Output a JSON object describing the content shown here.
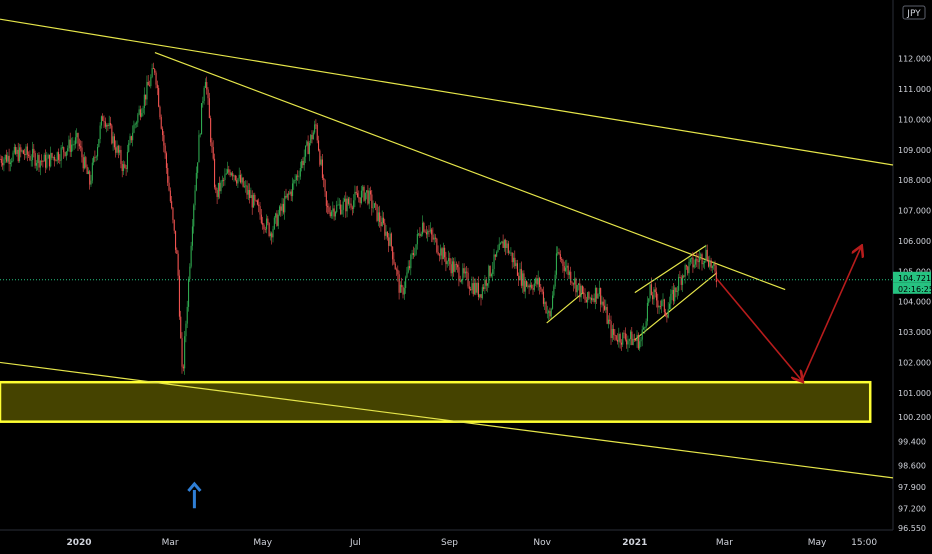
{
  "colors": {
    "background": "#000000",
    "axis_text": "#d1d4dc",
    "up": "#26a69a",
    "candle_up": "#2fa84f",
    "candle_down": "#ef5350",
    "trendline": "#e6e64a",
    "zone_fill": "#4d4a00",
    "zone_border": "#ffff33",
    "arrow_path": "#b71c1c",
    "blue_arrow": "#2f7fd6",
    "last_price": "#26c281"
  },
  "chart_data": {
    "type": "candlestick",
    "instrument_badge": "JPY",
    "ylim": [
      96.55,
      113.8
    ],
    "y_tick_labels": [
      {
        "v": 112.0,
        "label": "112.000"
      },
      {
        "v": 111.0,
        "label": "111.000"
      },
      {
        "v": 110.0,
        "label": "110.000"
      },
      {
        "v": 109.0,
        "label": "109.000"
      },
      {
        "v": 108.0,
        "label": "108.000"
      },
      {
        "v": 107.0,
        "label": "107.000"
      },
      {
        "v": 106.0,
        "label": "106.000"
      },
      {
        "v": 105.0,
        "label": "105.000"
      },
      {
        "v": 104.0,
        "label": "104.000"
      },
      {
        "v": 103.0,
        "label": "103.000"
      },
      {
        "v": 102.0,
        "label": "102.000"
      },
      {
        "v": 101.0,
        "label": "101.000"
      },
      {
        "v": 100.2,
        "label": "100.200"
      },
      {
        "v": 99.4,
        "label": "99.400"
      },
      {
        "v": 98.6,
        "label": "98.600"
      },
      {
        "v": 97.9,
        "label": "97.900"
      },
      {
        "v": 97.2,
        "label": "97.200"
      },
      {
        "v": 96.55,
        "label": "96.550"
      }
    ],
    "x_range": [
      "2019-11-10",
      "2021-06-20"
    ],
    "x_tick_labels": [
      {
        "date": "2020-01-01",
        "label": "2020",
        "bold": true
      },
      {
        "date": "2020-03-01",
        "label": "Mar"
      },
      {
        "date": "2020-05-01",
        "label": "May"
      },
      {
        "date": "2020-07-01",
        "label": "Jul"
      },
      {
        "date": "2020-09-01",
        "label": "Sep"
      },
      {
        "date": "2020-11-01",
        "label": "Nov"
      },
      {
        "date": "2021-01-01",
        "label": "2021",
        "bold": true
      },
      {
        "date": "2021-03-01",
        "label": "Mar"
      },
      {
        "date": "2021-05-01",
        "label": "May"
      },
      {
        "date": "2021-06-01",
        "label": "15:00"
      }
    ],
    "last_price": {
      "value": 104.721,
      "label": "104.721",
      "countdown": "02:16:25"
    },
    "price_path": [
      [
        "2019-11-10",
        108.7
      ],
      [
        "2019-11-25",
        108.9
      ],
      [
        "2019-12-10",
        108.6
      ],
      [
        "2019-12-31",
        109.3
      ],
      [
        "2020-01-08",
        107.9
      ],
      [
        "2020-01-17",
        110.2
      ],
      [
        "2020-01-31",
        108.3
      ],
      [
        "2020-02-05",
        109.6
      ],
      [
        "2020-02-20",
        111.7
      ],
      [
        "2020-03-06",
        105.2
      ],
      [
        "2020-03-09",
        101.4
      ],
      [
        "2020-03-16",
        107.0
      ],
      [
        "2020-03-24",
        111.6
      ],
      [
        "2020-03-31",
        107.5
      ],
      [
        "2020-04-10",
        108.4
      ],
      [
        "2020-04-22",
        107.5
      ],
      [
        "2020-05-06",
        106.3
      ],
      [
        "2020-05-20",
        107.7
      ],
      [
        "2020-06-05",
        109.8
      ],
      [
        "2020-06-12",
        107.0
      ],
      [
        "2020-06-25",
        107.2
      ],
      [
        "2020-07-08",
        107.6
      ],
      [
        "2020-07-24",
        106.0
      ],
      [
        "2020-07-31",
        104.2
      ],
      [
        "2020-08-14",
        106.6
      ],
      [
        "2020-08-31",
        105.3
      ],
      [
        "2020-09-21",
        104.3
      ],
      [
        "2020-10-07",
        106.0
      ],
      [
        "2020-10-20",
        104.6
      ],
      [
        "2020-10-30",
        104.6
      ],
      [
        "2020-11-06",
        103.4
      ],
      [
        "2020-11-11",
        105.6
      ],
      [
        "2020-11-30",
        104.0
      ],
      [
        "2020-12-08",
        104.4
      ],
      [
        "2020-12-17",
        102.9
      ],
      [
        "2021-01-05",
        102.7
      ],
      [
        "2021-01-11",
        104.3
      ],
      [
        "2021-01-22",
        103.7
      ],
      [
        "2021-02-02",
        105.0
      ],
      [
        "2021-02-17",
        105.6
      ],
      [
        "2021-02-24",
        104.721
      ]
    ],
    "trendlines": [
      {
        "name": "upper-channel",
        "from": [
          "2019-11-10",
          113.3
        ],
        "to": [
          "2021-06-20",
          108.5
        ]
      },
      {
        "name": "lower-channel",
        "from": [
          "2019-11-10",
          102.0
        ],
        "to": [
          "2021-06-20",
          98.2
        ]
      },
      {
        "name": "descending-resistance",
        "from": [
          "2020-02-20",
          112.2
        ],
        "to": [
          "2021-04-10",
          104.4
        ]
      },
      {
        "name": "pattern-upper",
        "from": [
          "2021-01-01",
          104.3
        ],
        "to": [
          "2021-02-17",
          105.85
        ]
      },
      {
        "name": "pattern-lower",
        "from": [
          "2021-01-01",
          102.75
        ],
        "to": [
          "2021-02-24",
          104.95
        ]
      },
      {
        "name": "flag-nov-lower",
        "from": [
          "2020-11-04",
          103.3
        ],
        "to": [
          "2020-11-28",
          104.3
        ]
      }
    ],
    "support_zone": {
      "from": "2019-11-10",
      "to": "2021-06-05",
      "top": 101.35,
      "bottom": 100.05
    },
    "projected_path": [
      [
        "2021-02-24",
        104.75
      ],
      [
        "2021-04-21",
        101.4
      ],
      [
        "2021-05-30",
        105.8
      ]
    ],
    "annotation_arrow": {
      "date": "2020-03-17",
      "from": 97.2,
      "to": 98.0
    }
  }
}
